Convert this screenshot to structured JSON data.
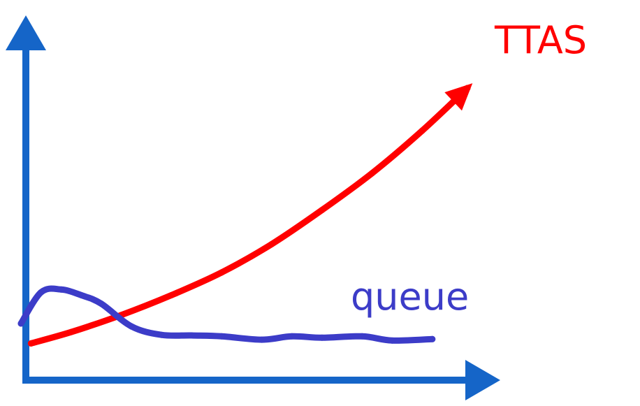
{
  "chart_data": {
    "type": "line",
    "title": "",
    "xlabel": "",
    "ylabel": "",
    "xlim": [
      0,
      100
    ],
    "ylim": [
      0,
      100
    ],
    "grid": false,
    "axis_color": "#1565c8",
    "series": [
      {
        "name": "TTAS",
        "color": "#ff0000",
        "arrow": true,
        "x": [
          2,
          10,
          20,
          30,
          40,
          50,
          60,
          70,
          80,
          89
        ],
        "y": [
          10,
          14,
          20,
          27,
          35,
          45,
          57,
          70,
          85,
          100
        ]
      },
      {
        "name": "queue",
        "color": "#3c3cc8",
        "arrow": false,
        "x": [
          0,
          4,
          8,
          12,
          16,
          22,
          28,
          34,
          40,
          48,
          54,
          60,
          68,
          74,
          82
        ],
        "y": [
          17,
          28,
          29,
          27,
          24,
          16,
          13,
          12.8,
          12.5,
          11.3,
          12.5,
          12,
          12.5,
          11,
          11.5
        ]
      }
    ]
  }
}
